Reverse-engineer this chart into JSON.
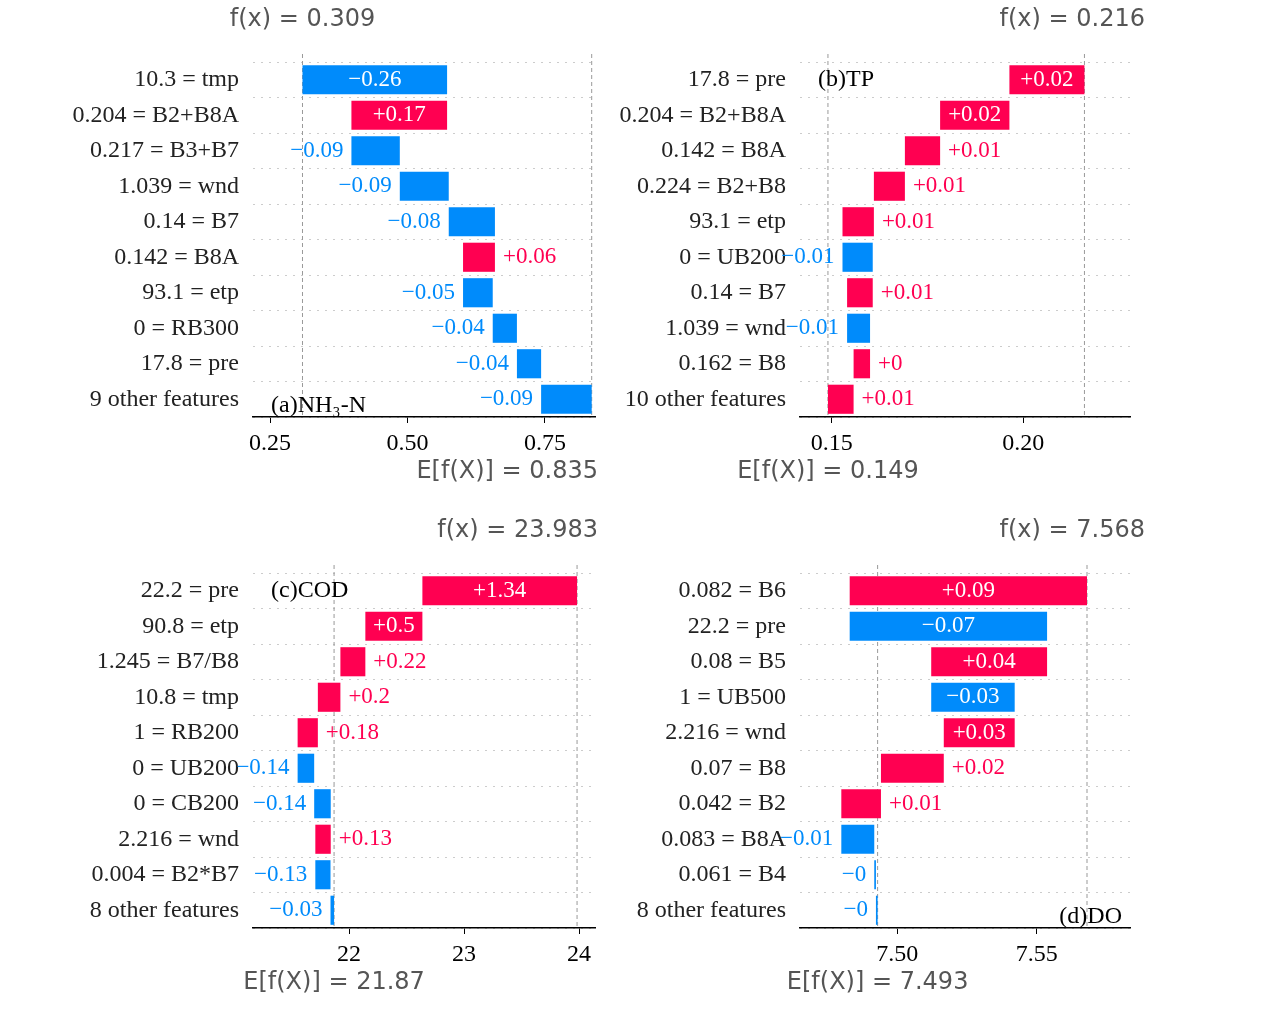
{
  "chart_data": [
    {
      "type": "bar",
      "orientation": "horizontal",
      "categories": [
        "10.3 = tmp",
        "0.204 = B2+B8A",
        "0.217 = B3+B7",
        "1.039 = wnd",
        "0.14 = B7",
        "0.142 = B8A",
        "93.1 = etp",
        "0 = RB300",
        "17.8 = pre",
        "9 other features"
      ],
      "values": [
        -0.263,
        0.174,
        -0.088,
        -0.089,
        -0.084,
        0.058,
        -0.054,
        -0.044,
        -0.044,
        -0.092
      ],
      "base": [
        0.572,
        0.398,
        0.486,
        0.575,
        0.659,
        0.601,
        0.655,
        0.699,
        0.743,
        0.835
      ],
      "colors": [
        "#008bfb",
        "#ff0051",
        "#008bfb",
        "#008bfb",
        "#008bfb",
        "#ff0051",
        "#008bfb",
        "#008bfb",
        "#008bfb",
        "#008bfb"
      ],
      "value_labels": [
        "−0.26",
        "+0.17",
        "−0.09",
        "−0.09",
        "−0.08",
        "+0.06",
        "−0.05",
        "−0.04",
        "−0.04",
        "−0.09"
      ],
      "xlim": [
        0.219,
        0.841
      ],
      "xticks": [
        0.25,
        {
          "value": 0.5,
          "label": "0.50"
        },
        0.75
      ],
      "ref_lines": [
        {
          "axis": "x",
          "value": 0.835,
          "label": "E[f(X)] = 0.835",
          "color": "#999999",
          "line_style": "dashed"
        },
        {
          "axis": "x",
          "value": 0.309,
          "label": "f(x) = 0.309",
          "color": "#999999",
          "line_style": "dashed"
        }
      ],
      "grid": "y",
      "annotations": [
        "(a)NH₃-N"
      ]
    },
    {
      "type": "bar",
      "orientation": "horizontal",
      "categories": [
        "17.8 = pre",
        "0.204 = B2+B8A",
        "0.142 = B8A",
        "0.224 = B2+B8",
        "93.1 = etp",
        "0 = UB200",
        "0.14 = B7",
        "1.039 = wnd",
        "0.162 = B8",
        "10 other features"
      ],
      "values": [
        0.0196,
        0.0181,
        0.0092,
        0.0081,
        0.0082,
        -0.0079,
        0.0067,
        -0.006,
        0.0043,
        0.0067
      ],
      "base": [
        0.1964,
        0.1783,
        0.1691,
        0.161,
        0.1528,
        0.1607,
        0.154,
        0.16,
        0.1557,
        0.149
      ],
      "colors": [
        "#ff0051",
        "#ff0051",
        "#ff0051",
        "#ff0051",
        "#ff0051",
        "#008bfb",
        "#ff0051",
        "#008bfb",
        "#ff0051",
        "#ff0051"
      ],
      "value_labels": [
        "+0.02",
        "+0.02",
        "+0.01",
        "+0.01",
        "+0.01",
        "−0.01",
        "+0.01",
        "−0.01",
        "+0",
        "+0.01"
      ],
      "xlim": [
        0.1417,
        0.2279
      ],
      "xticks": [
        0.15,
        {
          "value": 0.2,
          "label": "0.20"
        }
      ],
      "ref_lines": [
        {
          "axis": "x",
          "value": 0.149,
          "label": "E[f(X)] = 0.149",
          "color": "#999999",
          "line_style": "dashed"
        },
        {
          "axis": "x",
          "value": 0.216,
          "label": "f(x) = 0.216",
          "color": "#999999",
          "line_style": "dashed"
        }
      ],
      "grid": "y",
      "annotations": [
        "(b)TP"
      ]
    },
    {
      "type": "bar",
      "orientation": "horizontal",
      "categories": [
        "22.2 = pre",
        "90.8 = etp",
        "1.245 = B7/B8",
        "10.8 = tmp",
        "1 = RB200",
        "0 = UB200",
        "0 = CB200",
        "2.216 = wnd",
        "0.004 = B2*B7",
        "8 other features"
      ],
      "values": [
        1.345,
        0.496,
        0.217,
        0.196,
        0.176,
        -0.144,
        -0.144,
        0.134,
        -0.132,
        -0.031
      ],
      "base": [
        22.638,
        22.142,
        21.925,
        21.729,
        21.553,
        21.697,
        21.841,
        21.707,
        21.839,
        21.87
      ],
      "colors": [
        "#ff0051",
        "#ff0051",
        "#ff0051",
        "#ff0051",
        "#ff0051",
        "#008bfb",
        "#008bfb",
        "#ff0051",
        "#008bfb",
        "#008bfb"
      ],
      "value_labels": [
        "+1.34",
        "+0.5",
        "+0.22",
        "+0.2",
        "+0.18",
        "−0.14",
        "−0.14",
        "+0.13",
        "−0.13",
        "−0.03"
      ],
      "xlim": [
        21.165,
        24.139
      ],
      "xticks": [
        22,
        23,
        24
      ],
      "ref_lines": [
        {
          "axis": "x",
          "value": 21.87,
          "label": "E[f(X)] = 21.87",
          "color": "#999999",
          "line_style": "dashed"
        },
        {
          "axis": "x",
          "value": 23.983,
          "label": "f(x) = 23.983",
          "color": "#999999",
          "line_style": "dashed"
        }
      ],
      "grid": "y",
      "annotations": [
        "(c)COD"
      ]
    },
    {
      "type": "bar",
      "orientation": "horizontal",
      "categories": [
        "0.082 = B6",
        "22.2 = pre",
        "0.08 = B5",
        "1 = UB500",
        "2.216 = wnd",
        "0.07 = B8",
        "0.042 = B2",
        "0.083 = B8A",
        "0.061 = B4",
        "8 other features"
      ],
      "values": [
        0.085,
        -0.0707,
        0.0415,
        -0.0299,
        0.0254,
        0.0225,
        0.0142,
        -0.0118,
        -0.0006,
        -0.0006
      ],
      "base": [
        7.483,
        7.5537,
        7.5122,
        7.5421,
        7.5167,
        7.4942,
        7.48,
        7.4918,
        7.4924,
        7.493
      ],
      "colors": [
        "#ff0051",
        "#008bfb",
        "#ff0051",
        "#008bfb",
        "#ff0051",
        "#ff0051",
        "#ff0051",
        "#008bfb",
        "#008bfb",
        "#008bfb"
      ],
      "value_labels": [
        "+0.09",
        "−0.07",
        "+0.04",
        "−0.03",
        "+0.03",
        "+0.02",
        "+0.01",
        "−0.01",
        "−0",
        "−0"
      ],
      "xlim": [
        7.4652,
        7.5834
      ],
      "xticks": [
        {
          "value": 7.5,
          "label": "7.50"
        },
        7.55
      ],
      "ref_lines": [
        {
          "axis": "x",
          "value": 7.493,
          "label": "E[f(X)] = 7.493",
          "color": "#999999",
          "line_style": "dashed"
        },
        {
          "axis": "x",
          "value": 7.568,
          "label": "f(x) = 7.568",
          "color": "#999999",
          "line_style": "dashed"
        }
      ],
      "grid": "y",
      "annotations": [
        "(d)DO"
      ]
    }
  ]
}
